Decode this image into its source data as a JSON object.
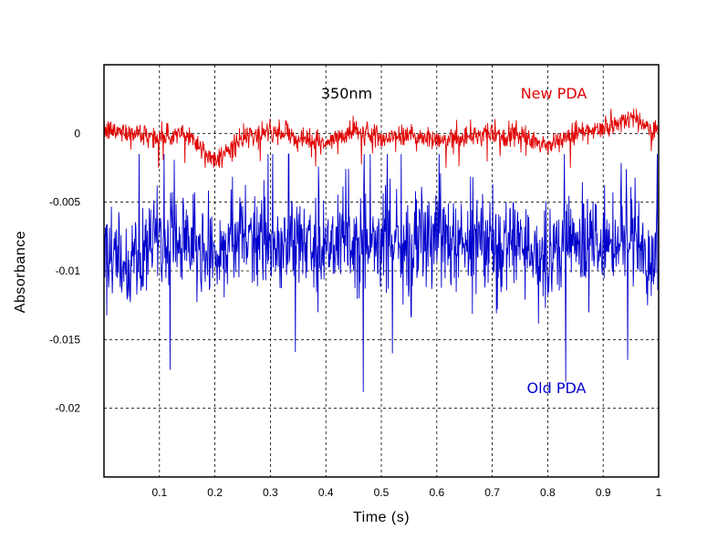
{
  "chart_data": {
    "type": "line",
    "title": "",
    "xlabel": "Time (s)",
    "ylabel": "Absorbance",
    "xlim": [
      0,
      1
    ],
    "ylim": [
      -0.025,
      0.005
    ],
    "x_ticks": [
      0.1,
      0.2,
      0.3,
      0.4,
      0.5,
      0.6,
      0.7,
      0.8,
      0.9,
      1
    ],
    "x_tick_labels": [
      "0.1",
      "0.2",
      "0.3",
      "0.4",
      "0.5",
      "0.6",
      "0.7",
      "0.8",
      "0.9",
      "1"
    ],
    "y_ticks": [
      0,
      -0.005,
      -0.01,
      -0.015,
      -0.02
    ],
    "y_tick_labels": [
      "0",
      "-0.005",
      "-0.01",
      "-0.015",
      "-0.02"
    ],
    "grid": true,
    "annotations": [
      "350nm"
    ],
    "series": [
      {
        "name": "New PDA",
        "color": "#e00000",
        "mean": 0.0,
        "spread": 0.0004,
        "min": -0.0025,
        "max": 0.0018,
        "x": [
          0,
          0.05,
          0.1,
          0.15,
          0.2,
          0.25,
          0.3,
          0.35,
          0.4,
          0.45,
          0.5,
          0.55,
          0.6,
          0.65,
          0.7,
          0.75,
          0.8,
          0.85,
          0.9,
          0.95,
          1
        ],
        "values": [
          0.0002,
          0.0001,
          -0.0003,
          0.0,
          -0.002,
          -0.0004,
          0.0001,
          -0.0002,
          -0.0008,
          0.0002,
          -0.0003,
          -0.0001,
          -0.0005,
          -0.0002,
          -0.0001,
          -0.0003,
          -0.0009,
          0.0,
          0.0003,
          0.0012,
          0.0001
        ]
      },
      {
        "name": "Old PDA",
        "color": "#0000cc",
        "mean": -0.008,
        "spread": 0.0018,
        "min": -0.022,
        "max": -0.0015,
        "x": [
          0,
          0.05,
          0.1,
          0.15,
          0.2,
          0.25,
          0.3,
          0.35,
          0.4,
          0.45,
          0.5,
          0.55,
          0.6,
          0.65,
          0.7,
          0.75,
          0.8,
          0.85,
          0.9,
          0.95,
          1
        ],
        "values": [
          -0.009,
          -0.0095,
          -0.0075,
          -0.008,
          -0.0085,
          -0.007,
          -0.0082,
          -0.0078,
          -0.0088,
          -0.0072,
          -0.008,
          -0.0085,
          -0.0076,
          -0.0082,
          -0.0079,
          -0.0083,
          -0.009,
          -0.0075,
          -0.0081,
          -0.0078,
          -0.0085
        ]
      }
    ]
  }
}
